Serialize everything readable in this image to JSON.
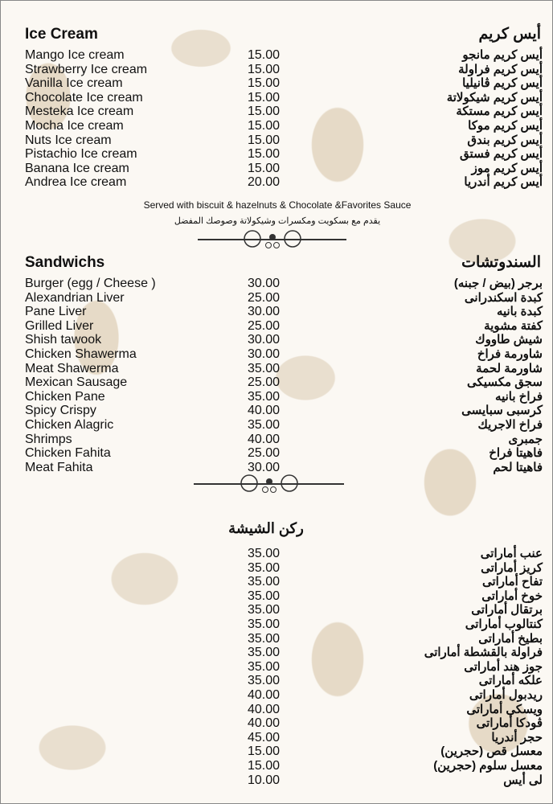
{
  "ice_cream": {
    "title_en": "Ice Cream",
    "title_ar": "أيس كريم",
    "items": [
      {
        "en": "Mango Ice cream",
        "price": "15.00",
        "ar": "أيس كريم مانجو"
      },
      {
        "en": "Strawberry Ice cream",
        "price": "15.00",
        "ar": "أيس كريم فراولة"
      },
      {
        "en": "Vanilla Ice cream",
        "price": "15.00",
        "ar": "أيس كريم ڤانيليا"
      },
      {
        "en": "Chocolate Ice cream",
        "price": "15.00",
        "ar": "أيس كريم شيكولاتة"
      },
      {
        "en": "Mesteka Ice cream",
        "price": "15.00",
        "ar": "أيس كريم مستكة"
      },
      {
        "en": "Mocha Ice cream",
        "price": "15.00",
        "ar": "أيس كريم موكا"
      },
      {
        "en": "Nuts Ice cream",
        "price": "15.00",
        "ar": "أيس كريم بندق"
      },
      {
        "en": "Pistachio Ice cream",
        "price": "15.00",
        "ar": "أيس كريم فستق"
      },
      {
        "en": "Banana Ice cream",
        "price": "15.00",
        "ar": "أيس كريم موز"
      },
      {
        "en": "Andrea Ice cream",
        "price": "20.00",
        "ar": "أيس كريم أندريا"
      }
    ],
    "note_en": "Served with biscuit & hazelnuts & Chocolate &Favorites Sauce",
    "note_ar": "يقدم مع بسكويت ومكسرات وشيكولاتة وصوصك المفضل"
  },
  "sandwiches": {
    "title_en": "Sandwichs",
    "title_ar": "السندوتشات",
    "items": [
      {
        "en": "Burger (egg / Cheese )",
        "price": "30.00",
        "ar": "برجر (بيض / جبنه)"
      },
      {
        "en": "Alexandrian Liver",
        "price": "25.00",
        "ar": "كبدة اسكندرانى"
      },
      {
        "en": "Pane Liver",
        "price": "30.00",
        "ar": "كبدة بانيه"
      },
      {
        "en": "Grilled Liver",
        "price": "25.00",
        "ar": "كفتة مشوية"
      },
      {
        "en": "Shish tawook",
        "price": "30.00",
        "ar": "شيش طاووك"
      },
      {
        "en": "Chicken Shawerma",
        "price": "30.00",
        "ar": "شاورمة فراخ"
      },
      {
        "en": "Meat Shawerma",
        "price": "35.00",
        "ar": "شاورمة لحمة"
      },
      {
        "en": "Mexican Sausage",
        "price": "25.00",
        "ar": "سجق مكسيكى"
      },
      {
        "en": "Chicken Pane",
        "price": "35.00",
        "ar": "فراخ بانيه"
      },
      {
        "en": "Spicy Crispy",
        "price": "40.00",
        "ar": "كرسبى سبايسى"
      },
      {
        "en": "Chicken Alagric",
        "price": "35.00",
        "ar": "فراخ الاجريك"
      },
      {
        "en": "Shrimps",
        "price": "40.00",
        "ar": "جمبرى"
      },
      {
        "en": "Chicken Fahita",
        "price": "25.00",
        "ar": "فاهيتا فراخ"
      },
      {
        "en": "Meat Fahita",
        "price": "30.00",
        "ar": "فاهيتا لحم"
      }
    ]
  },
  "shisha": {
    "title_ar": "ركن الشيشة",
    "items": [
      {
        "price": "35.00",
        "ar": "عنب أماراتى"
      },
      {
        "price": "35.00",
        "ar": "كريز أماراتى"
      },
      {
        "price": "35.00",
        "ar": "تفاح أماراتى"
      },
      {
        "price": "35.00",
        "ar": "خوخ أماراتى"
      },
      {
        "price": "35.00",
        "ar": "برتقال أماراتى"
      },
      {
        "price": "35.00",
        "ar": "كنتالوب أماراتى"
      },
      {
        "price": "35.00",
        "ar": "بطيخ أماراتى"
      },
      {
        "price": "35.00",
        "ar": "فراولة بالقشطة أماراتى"
      },
      {
        "price": "35.00",
        "ar": "جوز هند أماراتى"
      },
      {
        "price": "35.00",
        "ar": "علكه أماراتى"
      },
      {
        "price": "40.00",
        "ar": "ريدبول أماراتى"
      },
      {
        "price": "40.00",
        "ar": "ويسكى أماراتى"
      },
      {
        "price": "40.00",
        "ar": "ڤودكا أماراتى"
      },
      {
        "price": "45.00",
        "ar": "حجر أندريا"
      },
      {
        "price": "15.00",
        "ar": "معسل قص (حجرين)"
      },
      {
        "price": "15.00",
        "ar": "معسل سلوم (حجرين)"
      },
      {
        "price": "10.00",
        "ar": "لى أيس"
      }
    ]
  }
}
